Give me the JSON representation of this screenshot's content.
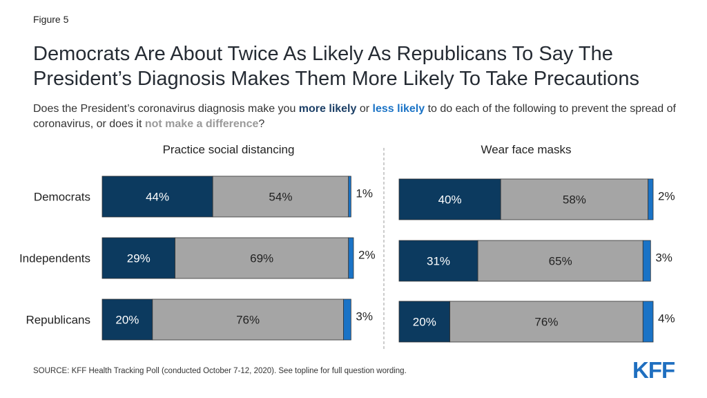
{
  "figure_label": "Figure 5",
  "title": "Democrats Are About Twice As Likely As Republicans To Say The President’s Diagnosis Makes Them More Likely To Take Precautions",
  "question": {
    "part1": "Does the President’s coronavirus diagnosis make you ",
    "more": "more likely",
    "part2": " or ",
    "less": "less likely",
    "part3": " to do each of the following to prevent the spread of coronavirus, or does it ",
    "none": "not make a difference",
    "part4": "?"
  },
  "colors": {
    "more_likely": "#0c3a5f",
    "no_difference": "#a5a5a5",
    "less_likely": "#1a73c6",
    "divider": "#9a9a9a"
  },
  "source": "SOURCE: KFF Health Tracking Poll (conducted October 7-12, 2020). See topline for full question wording.",
  "logo": "KFF",
  "chart_data": [
    {
      "type": "bar",
      "orientation": "horizontal",
      "stacked": true,
      "title": "Practice social distancing",
      "categories": [
        "Democrats",
        "Independents",
        "Republicans"
      ],
      "series": [
        {
          "values": [
            44,
            29,
            20
          ],
          "labels": [
            "44%",
            "29%",
            "20%"
          ]
        },
        {
          "values": [
            54,
            69,
            76
          ],
          "labels": [
            "54%",
            "69%",
            "76%"
          ]
        },
        {
          "values": [
            1,
            2,
            3
          ],
          "labels": [
            "1%",
            "2%",
            "3%"
          ]
        }
      ]
    },
    {
      "type": "bar",
      "orientation": "horizontal",
      "stacked": true,
      "title": "Wear face masks",
      "categories": [
        "Democrats",
        "Independents",
        "Republicans"
      ],
      "series": [
        {
          "values": [
            40,
            31,
            20
          ],
          "labels": [
            "40%",
            "31%",
            "20%"
          ]
        },
        {
          "values": [
            58,
            65,
            76
          ],
          "labels": [
            "58%",
            "65%",
            "76%"
          ]
        },
        {
          "values": [
            2,
            3,
            4
          ],
          "labels": [
            "2%",
            "3%",
            "4%"
          ]
        }
      ]
    }
  ]
}
